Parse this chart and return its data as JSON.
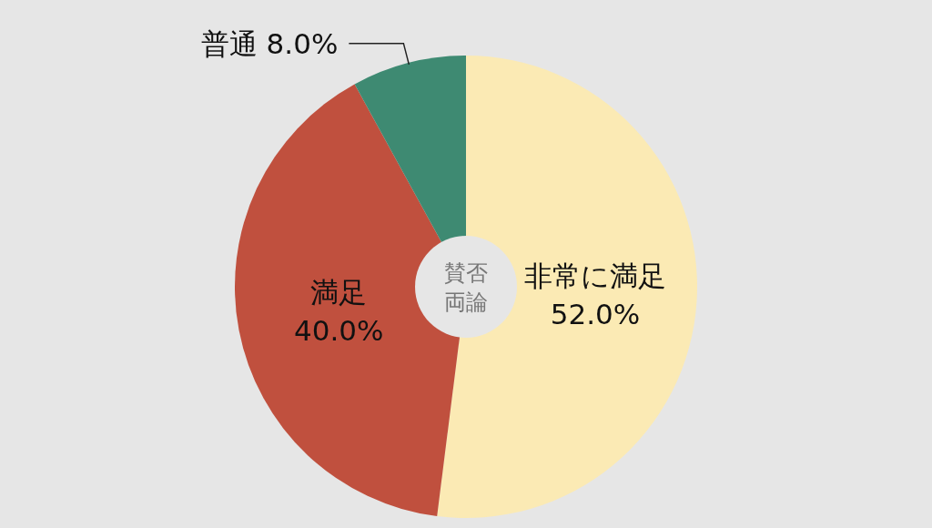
{
  "chart_data": {
    "type": "donut",
    "title": "賛否両論",
    "categories": [
      "非常に満足",
      "満足",
      "普通"
    ],
    "values": [
      52,
      40,
      8
    ],
    "colors": [
      "#fbeab4",
      "#c0503e",
      "#3e8a72"
    ],
    "value_labels": [
      "52.0%",
      "40.0%",
      "8.0%"
    ]
  }
}
